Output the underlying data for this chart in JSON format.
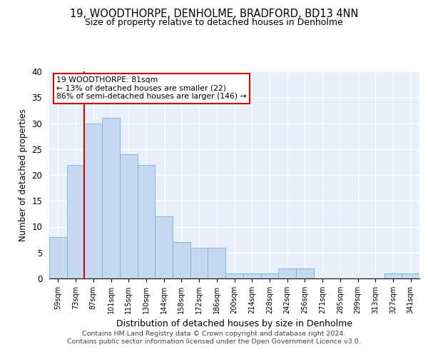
{
  "title": "19, WOODTHORPE, DENHOLME, BRADFORD, BD13 4NN",
  "subtitle": "Size of property relative to detached houses in Denholme",
  "xlabel": "Distribution of detached houses by size in Denholme",
  "ylabel": "Number of detached properties",
  "categories": [
    "59sqm",
    "73sqm",
    "87sqm",
    "101sqm",
    "115sqm",
    "130sqm",
    "144sqm",
    "158sqm",
    "172sqm",
    "186sqm",
    "200sqm",
    "214sqm",
    "228sqm",
    "242sqm",
    "256sqm",
    "271sqm",
    "285sqm",
    "299sqm",
    "313sqm",
    "327sqm",
    "341sqm"
  ],
  "values": [
    8,
    22,
    30,
    31,
    24,
    22,
    12,
    7,
    6,
    6,
    1,
    1,
    1,
    2,
    2,
    0,
    0,
    0,
    0,
    1,
    1
  ],
  "bar_color": "#c5d9f1",
  "bar_edge_color": "#7bafd4",
  "background_color": "#e8f0fb",
  "grid_color": "#ffffff",
  "annotation_text": "19 WOODTHORPE: 81sqm\n← 13% of detached houses are smaller (22)\n86% of semi-detached houses are larger (146) →",
  "vline_x_index": 1,
  "vline_color": "#cc0000",
  "annotation_box_edge": "#cc0000",
  "ylim": [
    0,
    40
  ],
  "yticks": [
    0,
    5,
    10,
    15,
    20,
    25,
    30,
    35,
    40
  ],
  "footer_line1": "Contains HM Land Registry data © Crown copyright and database right 2024.",
  "footer_line2": "Contains public sector information licensed under the Open Government Licence v3.0."
}
